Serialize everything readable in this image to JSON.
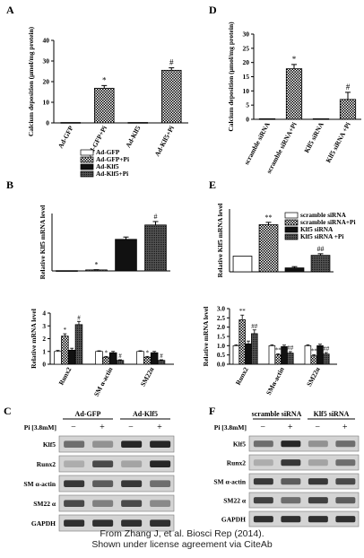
{
  "caption": {
    "line1": "From Zhang J, et al. Biosci Rep (2014).",
    "line2": "Shown under license agreement via CiteAb"
  },
  "chart_data": [
    {
      "panel": "A",
      "type": "bar",
      "ylabel": "Calcium deposition (μmol/mg protein)",
      "ylim": [
        0,
        40
      ],
      "yticks": [
        0,
        10,
        20,
        30,
        40
      ],
      "categories": [
        "Ad-GFP",
        "Ad-GFP+Pi",
        "Ad-Klf5",
        "Ad-Klf5+Pi"
      ],
      "values": [
        0.2,
        16.8,
        0.2,
        25.5
      ],
      "errors": [
        0,
        1.3,
        0,
        1.2
      ],
      "annotations": [
        "",
        "*",
        "",
        "#"
      ]
    },
    {
      "panel": "D",
      "type": "bar",
      "ylabel": "Calcium deposition (μmol/mg protein)",
      "ylim": [
        0,
        30
      ],
      "yticks": [
        0,
        5,
        10,
        15,
        20,
        25,
        30
      ],
      "categories": [
        "scramble siRNA",
        "scramble siRNA+Pi",
        "Klf5 siRNA",
        "Klf5 siRNA +Pi"
      ],
      "values": [
        0.2,
        17.8,
        0.2,
        7.0
      ],
      "errors": [
        0,
        1.5,
        0,
        2.5
      ],
      "annotations": [
        "",
        "*",
        "",
        "#"
      ]
    },
    {
      "panel": "B",
      "type": "bar",
      "ylabel": "Relative Klf5 mRNA level",
      "ylim": [
        0,
        200
      ],
      "legend": [
        "Ad-GFP",
        "Ad-GFP+Pi",
        "Ad-Klf5",
        "Ad-Klf5+Pi"
      ],
      "values": [
        1.0,
        3.5,
        110,
        160
      ],
      "errors": [
        0,
        0.8,
        8,
        12
      ],
      "annotations": [
        "",
        "*",
        "",
        "#"
      ]
    },
    {
      "panel": "B",
      "type": "bar",
      "ylabel": "Relative mRNA level",
      "ylim": [
        0,
        4
      ],
      "yticks": [
        0,
        1,
        2,
        3,
        4
      ],
      "categories": [
        "Runx2",
        "SM α-actin",
        "SM22α"
      ],
      "series": [
        {
          "name": "Ad-GFP",
          "values": [
            1.0,
            1.0,
            1.0
          ],
          "errors": [
            0.08,
            0.05,
            0.05
          ]
        },
        {
          "name": "Ad-GFP+Pi",
          "values": [
            2.2,
            0.55,
            0.55
          ],
          "errors": [
            0.18,
            0.06,
            0.06
          ]
        },
        {
          "name": "Ad-Klf5",
          "values": [
            1.1,
            0.9,
            0.9
          ],
          "errors": [
            0.15,
            0.1,
            0.1
          ]
        },
        {
          "name": "Ad-Klf5+Pi",
          "values": [
            3.1,
            0.3,
            0.3
          ],
          "errors": [
            0.25,
            0.05,
            0.05
          ]
        }
      ],
      "annotations": [
        [
          "",
          "*",
          "",
          "#"
        ],
        [
          "",
          "*",
          "",
          "#"
        ],
        [
          "",
          "*",
          "",
          "#"
        ]
      ]
    },
    {
      "panel": "E",
      "type": "bar",
      "ylabel": "Relative Klf5 mRNA level",
      "ylim": [
        0,
        4
      ],
      "legend": [
        "scramble siRNA",
        "scramble siRNA+Pi",
        "Klf5 siRNA",
        "Klf5 siRNA +Pi"
      ],
      "values": [
        1.0,
        3.0,
        0.25,
        1.05
      ],
      "errors": [
        0,
        0.15,
        0.08,
        0.1
      ],
      "annotations": [
        "",
        "**",
        "",
        "##"
      ]
    },
    {
      "panel": "E",
      "type": "bar",
      "ylabel": "Relative mRNA level",
      "ylim": [
        0,
        3
      ],
      "yticks": [
        0.0,
        0.5,
        1.0,
        1.5,
        2.0,
        2.5,
        3.0
      ],
      "categories": [
        "Runx2",
        "SMα-actin",
        "SM22α"
      ],
      "series": [
        {
          "name": "scramble siRNA",
          "values": [
            1.0,
            1.0,
            1.0
          ],
          "errors": [
            0.05,
            0.05,
            0.05
          ]
        },
        {
          "name": "scramble siRNA+Pi",
          "values": [
            2.4,
            0.5,
            0.45
          ],
          "errors": [
            0.25,
            0.06,
            0.06
          ]
        },
        {
          "name": "Klf5 siRNA",
          "values": [
            1.1,
            0.95,
            1.0
          ],
          "errors": [
            0.15,
            0.08,
            0.08
          ]
        },
        {
          "name": "Klf5 siRNA +Pi",
          "values": [
            1.65,
            0.6,
            0.55
          ],
          "errors": [
            0.2,
            0.08,
            0.08
          ]
        }
      ],
      "annotations": [
        [
          "",
          "**",
          "",
          "##"
        ],
        [
          "",
          "**",
          "",
          "##"
        ],
        [
          "",
          "**",
          "",
          "##"
        ]
      ]
    }
  ],
  "blots": [
    {
      "panel": "C",
      "title1": "Ad-GFP",
      "title2": "Ad-Klf5",
      "treatment": "Pi [3.8mM]",
      "lanes": [
        "−",
        "+",
        "−",
        "+"
      ],
      "rows": [
        "Klf5",
        "Runx2",
        "SM α-actin",
        "SM22 α",
        "GAPDH"
      ]
    },
    {
      "panel": "F",
      "title1": "scramble siRNA",
      "title2": "Klf5 siRNA",
      "treatment": "Pi [3.8mM]",
      "lanes": [
        "−",
        "+",
        "−",
        "+"
      ],
      "rows": [
        "Klf5",
        "Runx2",
        "SM α-actin",
        "SM22 α",
        "GAPDH"
      ]
    }
  ],
  "panel_letters": [
    "A",
    "D",
    "B",
    "E",
    "C",
    "F"
  ]
}
